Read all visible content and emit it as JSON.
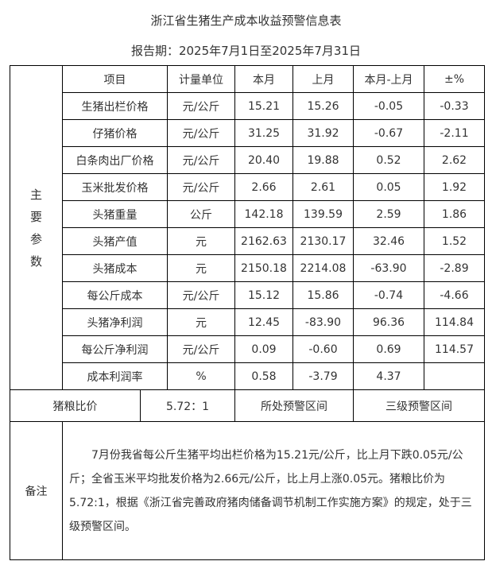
{
  "title": "浙江省生猪生产成本收益预警信息表",
  "period": "报告期：2025年7月1日至2025年7月31日",
  "side_label": "主要参数",
  "headers": [
    "项目",
    "计量单位",
    "本月",
    "上月",
    "本月-上月",
    "±%"
  ],
  "rows": [
    [
      "生猪出栏价格",
      "元/公斤",
      "15.21",
      "15.26",
      "-0.05",
      "-0.33"
    ],
    [
      "仔猪价格",
      "元/公斤",
      "31.25",
      "31.92",
      "-0.67",
      "-2.11"
    ],
    [
      "白条肉出厂价格",
      "元/公斤",
      "20.40",
      "19.88",
      "0.52",
      "2.62"
    ],
    [
      "玉米批发价格",
      "元/公斤",
      "2.66",
      "2.61",
      "0.05",
      "1.92"
    ],
    [
      "头猪重量",
      "公斤",
      "142.18",
      "139.59",
      "2.59",
      "1.86"
    ],
    [
      "头猪产值",
      "元",
      "2162.63",
      "2130.17",
      "32.46",
      "1.52"
    ],
    [
      "头猪成本",
      "元",
      "2150.18",
      "2214.08",
      "-63.90",
      "-2.89"
    ],
    [
      "每公斤成本",
      "元/公斤",
      "15.12",
      "15.86",
      "-0.74",
      "-4.66"
    ],
    [
      "头猪净利润",
      "元",
      "12.45",
      "-83.90",
      "96.36",
      "114.84"
    ],
    [
      "每公斤净利润",
      "元/公斤",
      "0.09",
      "-0.60",
      "0.69",
      "114.57"
    ],
    [
      "成本利润率",
      "%",
      "0.58",
      "-3.79",
      "4.37",
      ""
    ]
  ],
  "ratio": {
    "label": "猪粮比价",
    "value": "5.72：1",
    "zone_label": "所处预警区间",
    "zone_value": "三级预警区间"
  },
  "note": {
    "label": "备注",
    "text": "7月份我省每公斤生猪平均出栏价格为15.21元/公斤，比上月下跌0.05元/公斤；全省玉米平均批发价格为2.66元/公斤，比上月上涨0.05元。猪粮比价为5.72:1，根据《浙江省完善政府猪肉储备调节机制工作实施方案》的规定，处于三级预警区间。"
  }
}
